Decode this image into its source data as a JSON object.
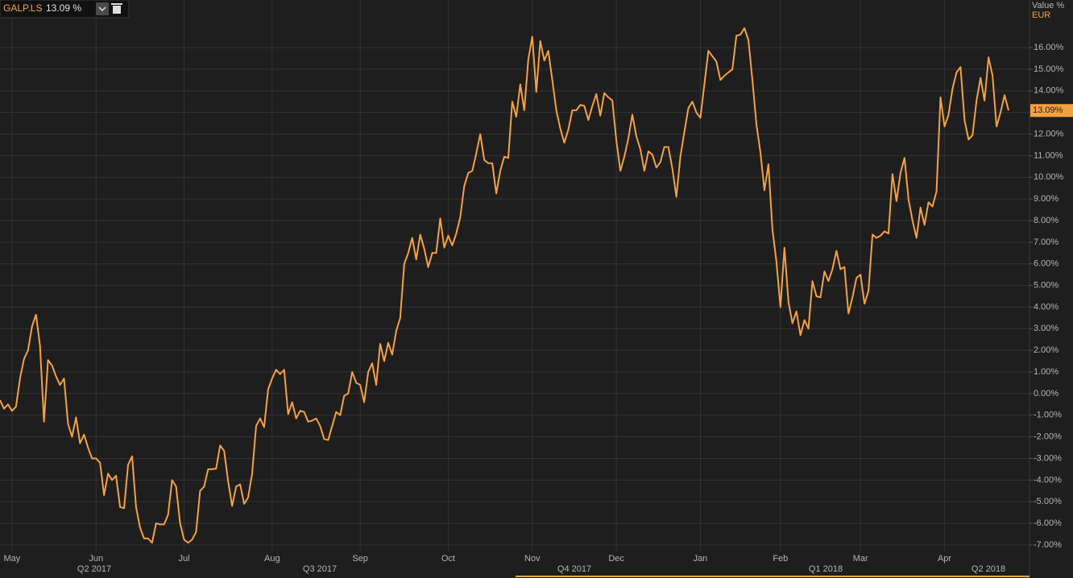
{
  "chart_data": {
    "type": "line",
    "axis_header": "Value %",
    "currency": "EUR",
    "legend_value": "13.09 %",
    "last_value_label": "13.09%",
    "quarter_labels": [
      "Q2 2017",
      "Q3 2017",
      "Q4 2017",
      "Q1 2018",
      "Q2 2018"
    ],
    "ylim": [
      -7.3,
      18.2
    ],
    "yticks": [
      {
        "value": -7,
        "label": "-7.00%"
      },
      {
        "value": -6,
        "label": "-6.00%"
      },
      {
        "value": -5,
        "label": "-5.00%"
      },
      {
        "value": -4,
        "label": "-4.00%"
      },
      {
        "value": -3,
        "label": "-3.00%"
      },
      {
        "value": -2,
        "label": "-2.00%"
      },
      {
        "value": -1,
        "label": "-1.00%"
      },
      {
        "value": 0,
        "label": "0.00%"
      },
      {
        "value": 1,
        "label": "1.00%"
      },
      {
        "value": 2,
        "label": "2.00%"
      },
      {
        "value": 3,
        "label": "3.00%"
      },
      {
        "value": 4,
        "label": "4.00%"
      },
      {
        "value": 5,
        "label": "5.00%"
      },
      {
        "value": 6,
        "label": "6.00%"
      },
      {
        "value": 7,
        "label": "7.00%"
      },
      {
        "value": 8,
        "label": "8.00%"
      },
      {
        "value": 9,
        "label": "9.00%"
      },
      {
        "value": 10,
        "label": "10.00%"
      },
      {
        "value": 11,
        "label": "11.00%"
      },
      {
        "value": 12,
        "label": "12.00%"
      },
      {
        "value": 13,
        "label": "13.00%"
      },
      {
        "value": 14,
        "label": "14.00%"
      },
      {
        "value": 15,
        "label": "15.00%"
      },
      {
        "value": 16,
        "label": "16.00%"
      }
    ],
    "grid": true,
    "categories": [
      null,
      null,
      null,
      "May",
      null,
      null,
      null,
      null,
      null,
      null,
      null,
      null,
      null,
      null,
      null,
      null,
      null,
      null,
      null,
      null,
      null,
      null,
      null,
      null,
      "Jun",
      null,
      null,
      null,
      null,
      null,
      null,
      null,
      null,
      null,
      null,
      null,
      null,
      null,
      null,
      null,
      null,
      null,
      null,
      null,
      null,
      null,
      "Jul",
      null,
      null,
      null,
      null,
      null,
      null,
      null,
      null,
      null,
      null,
      null,
      null,
      null,
      null,
      null,
      null,
      null,
      null,
      null,
      null,
      null,
      "Aug",
      null,
      null,
      null,
      null,
      null,
      null,
      null,
      null,
      null,
      null,
      null,
      null,
      null,
      null,
      null,
      null,
      null,
      null,
      null,
      null,
      null,
      "Sep",
      null,
      null,
      null,
      null,
      null,
      null,
      null,
      null,
      null,
      null,
      null,
      null,
      null,
      null,
      null,
      null,
      null,
      null,
      null,
      null,
      null,
      "Oct",
      null,
      null,
      null,
      null,
      null,
      null,
      null,
      null,
      null,
      null,
      null,
      null,
      null,
      null,
      null,
      null,
      null,
      null,
      null,
      null,
      "Nov",
      null,
      null,
      null,
      null,
      null,
      null,
      null,
      null,
      null,
      null,
      null,
      null,
      null,
      null,
      null,
      null,
      null,
      null,
      null,
      null,
      "Dec",
      null,
      null,
      null,
      null,
      null,
      null,
      null,
      null,
      null,
      null,
      null,
      null,
      null,
      null,
      null,
      null,
      null,
      null,
      null,
      null,
      "Jan",
      null,
      null,
      null,
      null,
      null,
      null,
      null,
      null,
      null,
      null,
      null,
      null,
      null,
      null,
      null,
      null,
      null,
      null,
      null,
      "Feb",
      null,
      null,
      null,
      null,
      null,
      null,
      null,
      null,
      null,
      null,
      null,
      null,
      null,
      null,
      null,
      null,
      null,
      null,
      null,
      "Mar",
      null,
      null,
      null,
      null,
      null,
      null,
      null,
      null,
      null,
      null,
      null,
      null,
      null,
      null,
      null,
      null,
      null,
      null,
      null,
      null,
      "Apr",
      null,
      null,
      null,
      null,
      null,
      null,
      null,
      null,
      null,
      null,
      null,
      null,
      null,
      null,
      null,
      null
    ],
    "series": [
      {
        "name": "GALP.LS",
        "color": "#f5a142",
        "values": [
          -0.3,
          -0.7,
          -0.5,
          -0.8,
          -0.6,
          0.7,
          1.6,
          2.0,
          3.1,
          3.65,
          2.2,
          -1.3,
          1.55,
          1.3,
          0.8,
          0.4,
          0.7,
          -1.4,
          -2.0,
          -1.1,
          -2.3,
          -1.9,
          -2.5,
          -3.0,
          -3.0,
          -3.2,
          -4.7,
          -3.7,
          -4.0,
          -3.8,
          -5.25,
          -5.3,
          -3.3,
          -2.9,
          -5.25,
          -6.2,
          -6.7,
          -6.7,
          -6.9,
          -6.0,
          -6.05,
          -6.05,
          -5.6,
          -4.0,
          -4.3,
          -6.0,
          -6.75,
          -6.9,
          -6.75,
          -6.4,
          -4.5,
          -4.3,
          -3.5,
          -3.5,
          -3.47,
          -2.4,
          -2.65,
          -4.05,
          -5.2,
          -4.3,
          -4.2,
          -5.1,
          -4.8,
          -3.7,
          -1.5,
          -1.15,
          -1.55,
          0.2,
          0.7,
          1.1,
          0.9,
          1.1,
          -0.95,
          -0.4,
          -1.15,
          -0.8,
          -0.85,
          -1.3,
          -1.25,
          -1.15,
          -1.5,
          -2.1,
          -2.15,
          -1.5,
          -0.85,
          -1.0,
          -0.1,
          0.0,
          1.0,
          0.5,
          0.4,
          -0.4,
          1.0,
          1.4,
          0.4,
          2.3,
          1.5,
          2.35,
          1.8,
          2.9,
          3.5,
          6.0,
          6.5,
          7.2,
          6.2,
          7.35,
          6.7,
          5.85,
          6.5,
          6.5,
          8.1,
          6.75,
          7.3,
          6.85,
          7.4,
          8.15,
          9.6,
          10.2,
          10.3,
          11.1,
          12.0,
          10.8,
          10.65,
          10.65,
          9.25,
          10.3,
          10.95,
          10.9,
          13.5,
          12.8,
          14.3,
          13.1,
          15.45,
          16.5,
          13.95,
          16.3,
          15.4,
          15.85,
          14.5,
          13.1,
          12.25,
          11.6,
          12.2,
          13.1,
          13.1,
          13.35,
          13.3,
          12.65,
          13.3,
          13.85,
          12.85,
          13.9,
          13.7,
          13.55,
          11.7,
          10.3,
          10.95,
          11.8,
          12.9,
          11.9,
          11.3,
          10.3,
          11.2,
          11.05,
          10.45,
          10.7,
          11.4,
          11.4,
          10.4,
          9.1,
          10.95,
          12.1,
          13.2,
          13.5,
          13.0,
          12.75,
          14.3,
          15.85,
          15.6,
          15.35,
          14.5,
          14.7,
          14.85,
          15.0,
          16.55,
          16.6,
          16.9,
          16.35,
          14.5,
          12.45,
          11.15,
          9.4,
          10.6,
          7.6,
          6.1,
          4.0,
          6.75,
          4.25,
          3.25,
          3.8,
          2.7,
          3.4,
          3.0,
          5.2,
          4.5,
          4.45,
          5.65,
          5.2,
          5.75,
          6.6,
          5.75,
          5.85,
          3.7,
          4.45,
          5.35,
          5.5,
          4.15,
          4.75,
          7.35,
          7.2,
          7.3,
          7.5,
          7.4,
          10.15,
          8.9,
          10.2,
          10.9,
          9.0,
          8.0,
          7.2,
          8.6,
          7.8,
          8.85,
          8.65,
          9.35,
          13.7,
          12.35,
          12.9,
          14.1,
          14.85,
          15.1,
          12.65,
          11.75,
          11.95,
          13.55,
          14.6,
          13.55,
          15.55,
          14.7,
          12.35,
          13.0,
          13.8,
          13.09
        ]
      }
    ]
  }
}
